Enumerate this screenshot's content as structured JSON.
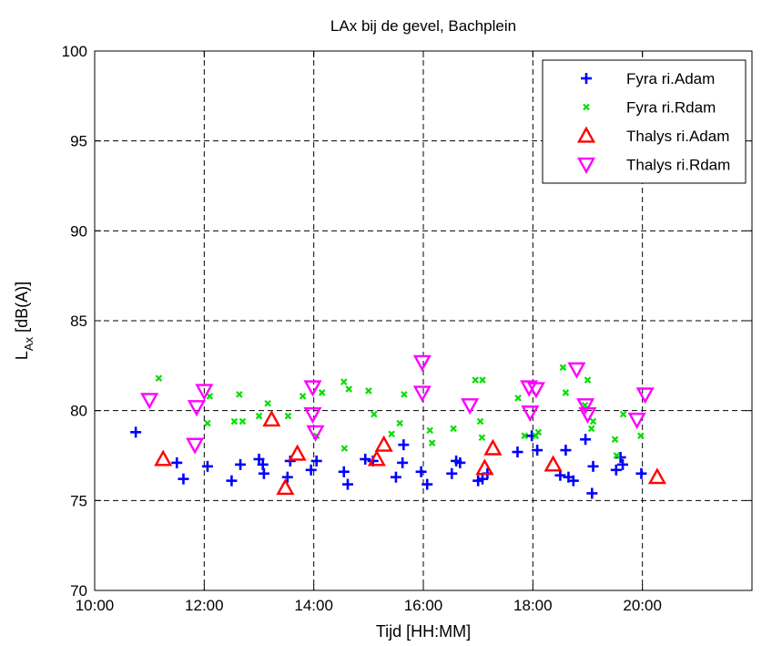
{
  "chart_data": {
    "type": "scatter",
    "title": "LAx bij de gevel, Bachplein",
    "xlabel": "Tijd [HH:MM]",
    "ylabel_main": "L",
    "ylabel_sub": "Ax",
    "ylabel_rest": " [dB(A)]",
    "xlim": [
      10,
      22
    ],
    "ylim": [
      70,
      100
    ],
    "xticks": [
      10,
      12,
      14,
      16,
      18,
      20
    ],
    "xtick_labels": [
      "10:00",
      "12:00",
      "14:00",
      "16:00",
      "18:00",
      "20:00"
    ],
    "yticks": [
      70,
      75,
      80,
      85,
      90,
      95,
      100
    ],
    "ytick_labels": [
      "70",
      "75",
      "80",
      "85",
      "90",
      "95",
      "100"
    ],
    "grid": true,
    "legend_position": "top-right",
    "series": [
      {
        "name": "Fyra ri.Adam",
        "marker": "plus",
        "color": "#0000ff",
        "points": [
          [
            10.75,
            78.8
          ],
          [
            11.5,
            77.1
          ],
          [
            11.62,
            76.2
          ],
          [
            12.06,
            76.9
          ],
          [
            12.5,
            76.1
          ],
          [
            12.66,
            77.0
          ],
          [
            13.0,
            77.3
          ],
          [
            13.07,
            77.0
          ],
          [
            13.09,
            76.5
          ],
          [
            13.52,
            76.3
          ],
          [
            13.57,
            77.2
          ],
          [
            13.95,
            76.7
          ],
          [
            14.05,
            77.2
          ],
          [
            14.55,
            76.6
          ],
          [
            14.62,
            75.9
          ],
          [
            14.94,
            77.3
          ],
          [
            15.08,
            77.2
          ],
          [
            15.5,
            76.3
          ],
          [
            15.62,
            77.1
          ],
          [
            15.64,
            78.1
          ],
          [
            15.96,
            76.6
          ],
          [
            16.07,
            75.9
          ],
          [
            16.52,
            76.5
          ],
          [
            16.6,
            77.2
          ],
          [
            16.67,
            77.1
          ],
          [
            17.0,
            76.1
          ],
          [
            17.08,
            76.2
          ],
          [
            17.17,
            76.5
          ],
          [
            17.72,
            77.7
          ],
          [
            17.98,
            78.6
          ],
          [
            18.08,
            77.8
          ],
          [
            18.5,
            76.4
          ],
          [
            18.6,
            77.8
          ],
          [
            18.65,
            76.3
          ],
          [
            18.74,
            76.1
          ],
          [
            18.96,
            78.4
          ],
          [
            19.08,
            75.4
          ],
          [
            19.1,
            76.9
          ],
          [
            19.52,
            76.7
          ],
          [
            19.6,
            77.4
          ],
          [
            19.64,
            77.0
          ],
          [
            19.98,
            76.5
          ]
        ]
      },
      {
        "name": "Fyra ri.Rdam",
        "marker": "x",
        "color": "#00dd00",
        "points": [
          [
            11.17,
            81.8
          ],
          [
            12.06,
            79.3
          ],
          [
            12.1,
            80.8
          ],
          [
            12.55,
            79.4
          ],
          [
            12.64,
            80.9
          ],
          [
            12.7,
            79.4
          ],
          [
            13.0,
            79.7
          ],
          [
            13.16,
            80.4
          ],
          [
            13.53,
            79.7
          ],
          [
            13.8,
            80.8
          ],
          [
            14.05,
            78.6
          ],
          [
            14.15,
            81.0
          ],
          [
            14.55,
            81.6
          ],
          [
            14.56,
            77.9
          ],
          [
            14.64,
            81.2
          ],
          [
            15.0,
            81.1
          ],
          [
            15.1,
            79.8
          ],
          [
            15.42,
            78.7
          ],
          [
            15.57,
            79.3
          ],
          [
            15.65,
            80.9
          ],
          [
            16.12,
            78.9
          ],
          [
            16.16,
            78.2
          ],
          [
            16.55,
            79.0
          ],
          [
            16.95,
            81.7
          ],
          [
            17.04,
            79.4
          ],
          [
            17.08,
            81.7
          ],
          [
            17.07,
            78.5
          ],
          [
            17.73,
            80.7
          ],
          [
            17.85,
            78.6
          ],
          [
            18.05,
            78.6
          ],
          [
            18.1,
            78.8
          ],
          [
            18.55,
            82.4
          ],
          [
            18.6,
            81.0
          ],
          [
            18.95,
            80.3
          ],
          [
            19.0,
            81.7
          ],
          [
            19.07,
            79.0
          ],
          [
            19.1,
            79.4
          ],
          [
            19.5,
            78.4
          ],
          [
            19.53,
            77.5
          ],
          [
            19.65,
            79.8
          ],
          [
            19.97,
            78.6
          ]
        ]
      },
      {
        "name": "Thalys ri.Adam",
        "marker": "triangle-up",
        "color": "#ff0000",
        "points": [
          [
            11.25,
            77.3
          ],
          [
            13.23,
            79.5
          ],
          [
            13.48,
            75.7
          ],
          [
            13.7,
            77.6
          ],
          [
            15.15,
            77.3
          ],
          [
            15.28,
            78.1
          ],
          [
            17.12,
            76.8
          ],
          [
            17.27,
            77.9
          ],
          [
            18.37,
            77.0
          ],
          [
            20.27,
            76.3
          ]
        ]
      },
      {
        "name": "Thalys ri.Rdam",
        "marker": "triangle-down",
        "color": "#ff00ff",
        "points": [
          [
            11.0,
            80.6
          ],
          [
            11.83,
            78.1
          ],
          [
            11.86,
            80.2
          ],
          [
            12.0,
            81.1
          ],
          [
            13.98,
            81.3
          ],
          [
            13.98,
            79.8
          ],
          [
            14.03,
            78.8
          ],
          [
            15.98,
            82.7
          ],
          [
            15.98,
            81.0
          ],
          [
            16.85,
            80.3
          ],
          [
            17.93,
            81.3
          ],
          [
            17.95,
            79.9
          ],
          [
            18.06,
            81.2
          ],
          [
            18.8,
            82.3
          ],
          [
            18.96,
            80.3
          ],
          [
            19.0,
            79.8
          ],
          [
            19.9,
            79.5
          ],
          [
            20.05,
            80.9
          ]
        ]
      }
    ]
  }
}
